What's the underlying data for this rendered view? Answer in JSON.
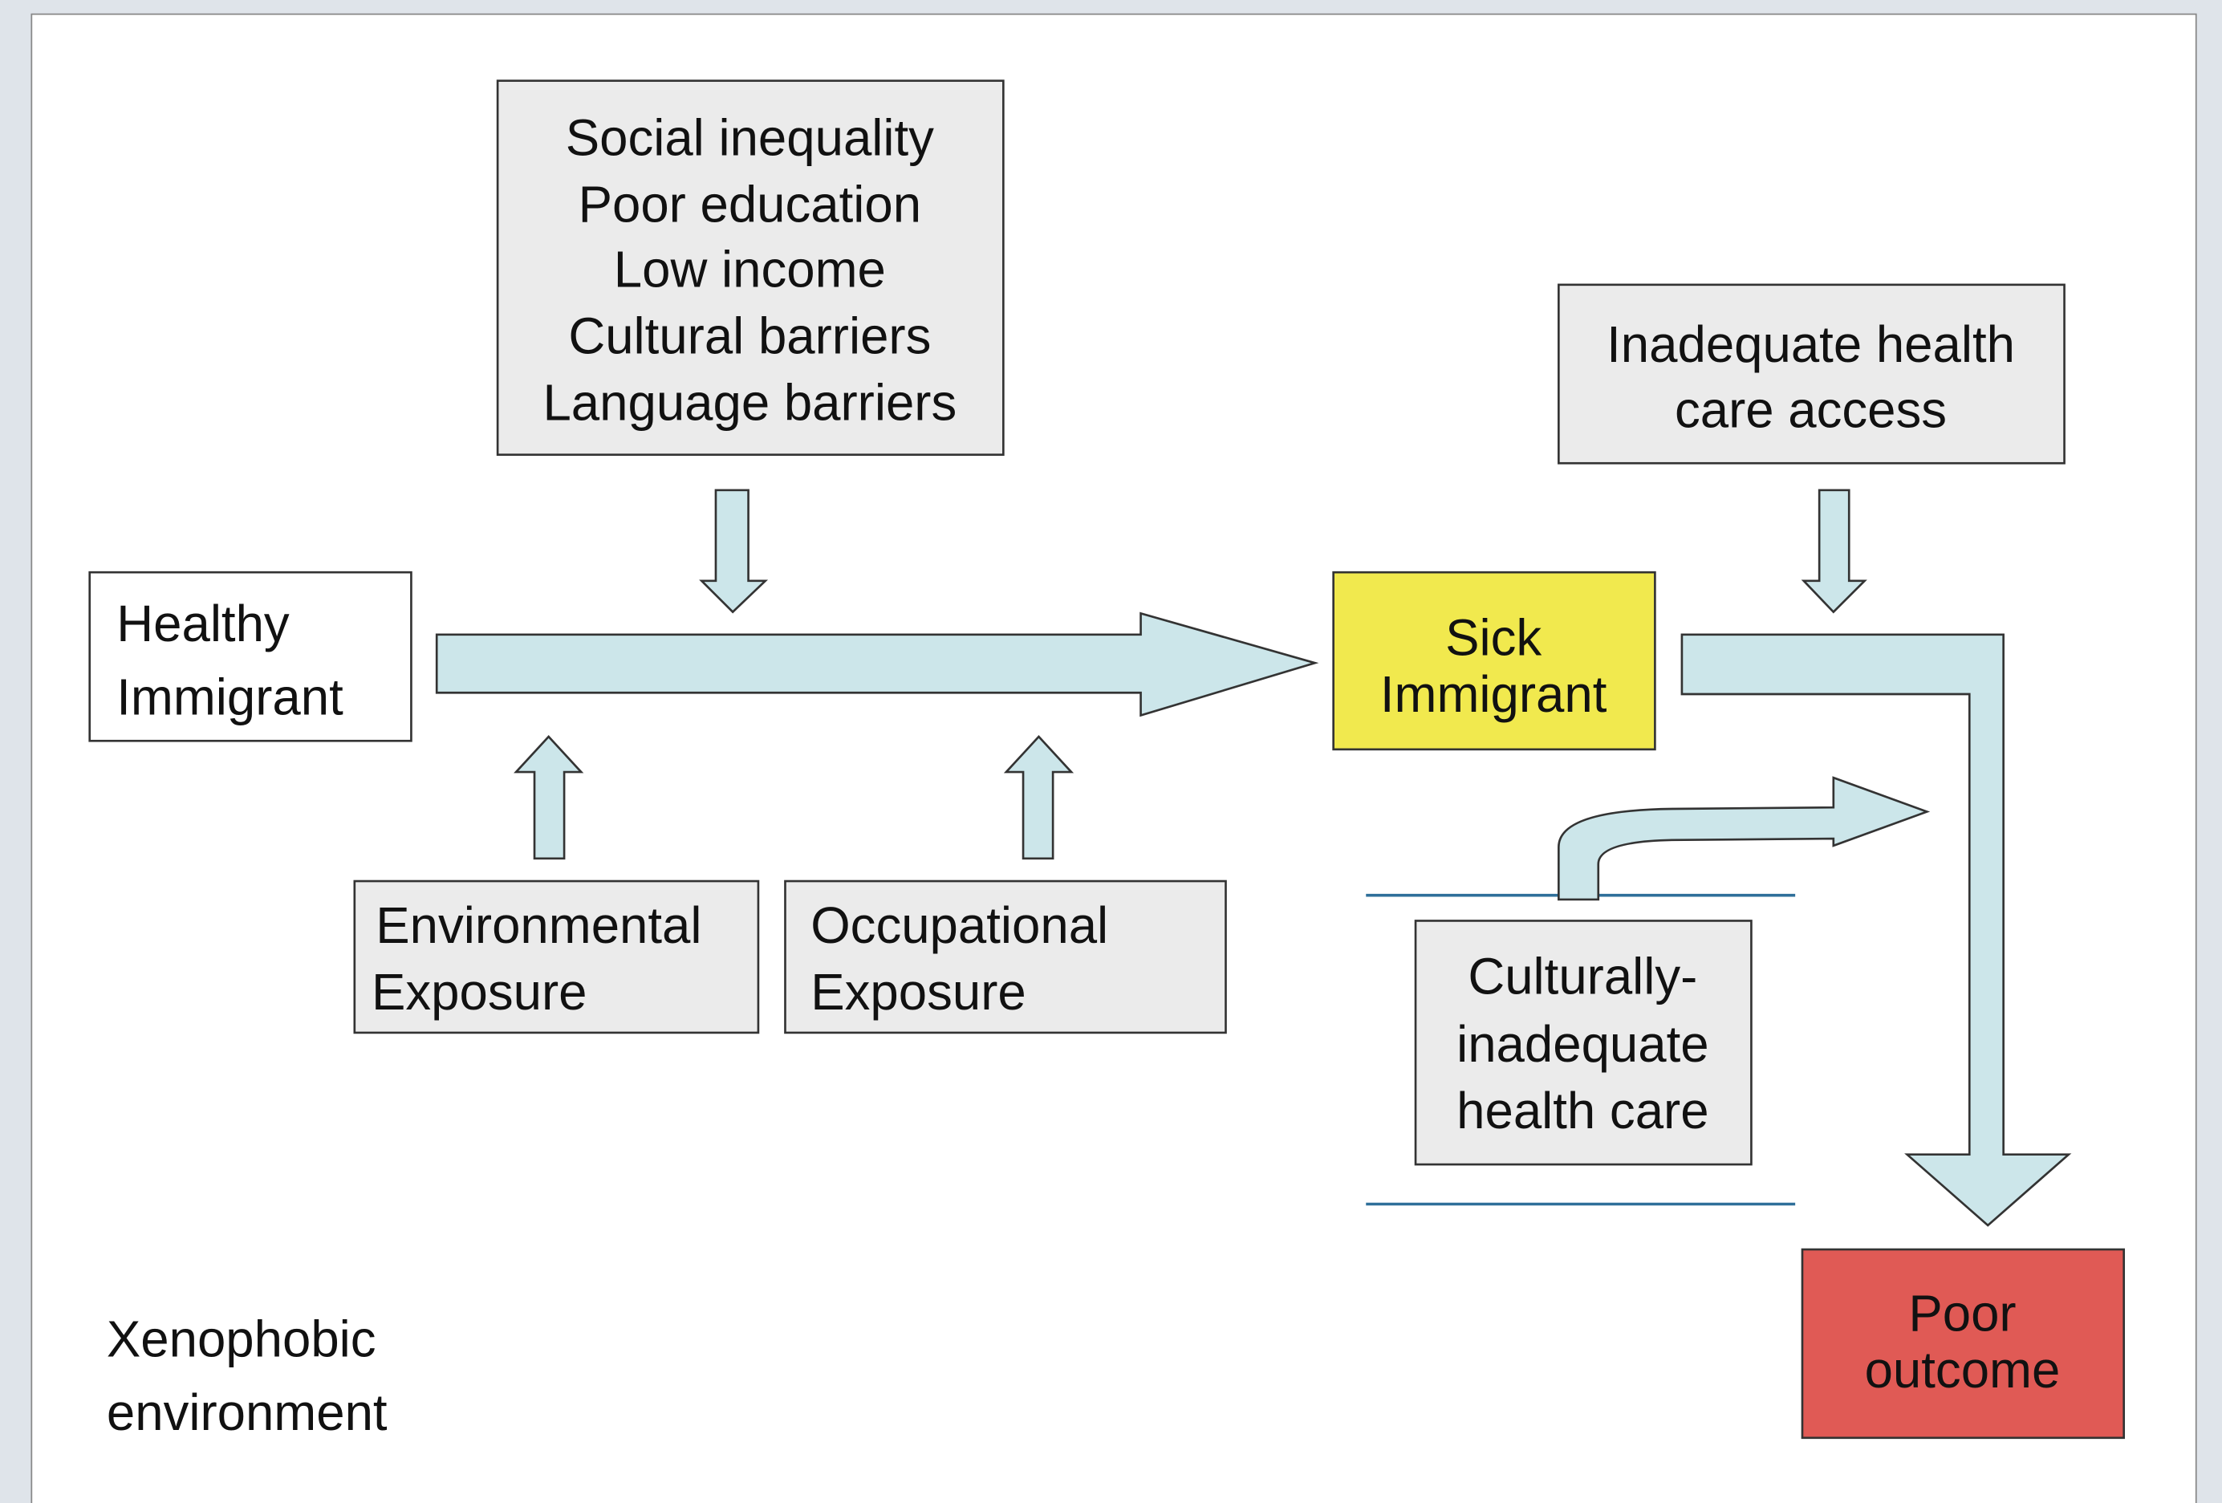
{
  "nodes": [
    {
      "lines": [
        "Social inequality",
        "Poor education",
        "Low income",
        "Cultural barriers",
        "Language barriers"
      ]
    },
    {
      "lines": [
        "Inadequate health",
        "care access"
      ]
    },
    {
      "lines": [
        "Healthy",
        "Immigrant"
      ]
    },
    {
      "lines": [
        "Sick",
        "Immigrant"
      ]
    },
    {
      "lines": [
        "Environmental",
        "Exposure"
      ]
    },
    {
      "lines": [
        "Occupational",
        "Exposure"
      ]
    },
    {
      "lines": [
        "Culturally-",
        "inadequate",
        "health care"
      ]
    },
    {
      "lines": [
        "Poor",
        "outcome"
      ]
    }
  ],
  "footer": {
    "lines": [
      "Xenophobic",
      "environment"
    ]
  }
}
